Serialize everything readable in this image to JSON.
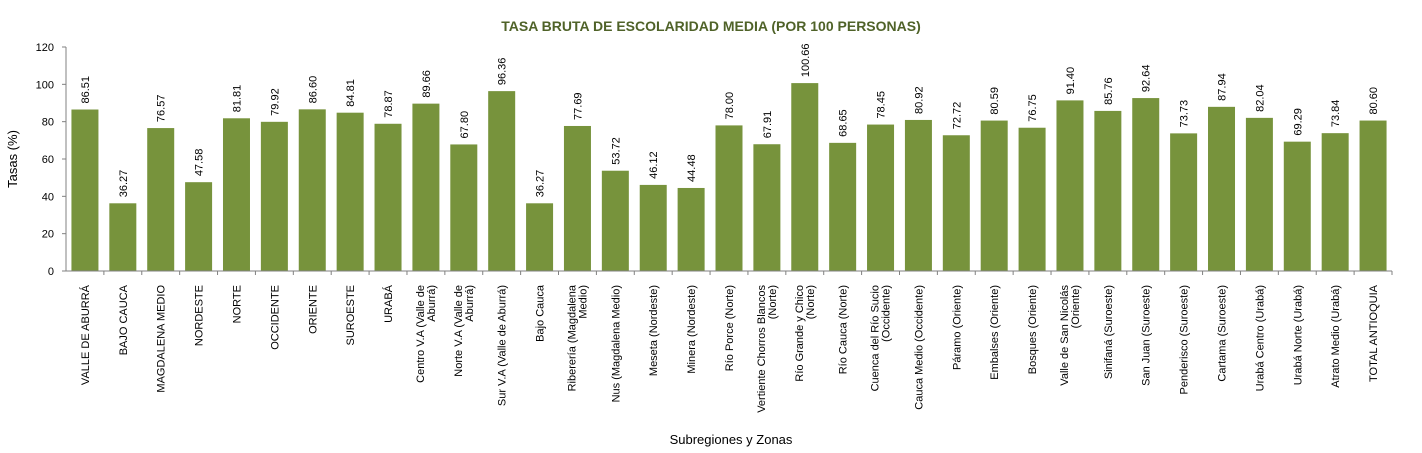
{
  "chart_data": {
    "type": "bar",
    "title": "TASA BRUTA DE ESCOLARIDAD MEDIA (POR 100 PERSONAS)",
    "xlabel": "Subregiones y Zonas",
    "ylabel": "Tasas (%)",
    "ylim": [
      0,
      120
    ],
    "yticks": [
      0,
      20,
      40,
      60,
      80,
      100,
      120
    ],
    "grid": false,
    "colors": {
      "bar": "#77933C",
      "title": "#4F6228",
      "axis": "#808080"
    },
    "categories": [
      [
        "VALLE DE ABURRÁ"
      ],
      [
        "BAJO CAUCA"
      ],
      [
        "MAGDALENA MEDIO"
      ],
      [
        "NORDESTE"
      ],
      [
        "NORTE"
      ],
      [
        "OCCIDENTE"
      ],
      [
        "ORIENTE"
      ],
      [
        "SUROESTE"
      ],
      [
        "URABÁ"
      ],
      [
        "Centro V.A (Valle de",
        "Aburrá)"
      ],
      [
        "Norte V.A (Valle de",
        "Aburrá)"
      ],
      [
        "Sur  V.A (Valle de Aburrá)"
      ],
      [
        "Bajo Cauca"
      ],
      [
        "Riberería  (Magdalena",
        "Medio)"
      ],
      [
        "Nus  (Magdalena Medio)"
      ],
      [
        "Meseta  (Nordeste)"
      ],
      [
        "Minera  (Nordeste)"
      ],
      [
        "Río Porce   (Norte)"
      ],
      [
        "Vertiente Chorros Blancos",
        "(Norte)"
      ],
      [
        "Río Grande y Chico",
        "(Norte)"
      ],
      [
        "Río Cauca  (Norte)"
      ],
      [
        "Cuenca del Río Sucio",
        "(Occidente)"
      ],
      [
        "Cauca Medio  (Occidente)"
      ],
      [
        "Páramo  (Oriente)"
      ],
      [
        "Embalses  (Oriente)"
      ],
      [
        "Bosques  (Oriente)"
      ],
      [
        "Valle de San Nicolás",
        "(Oriente)"
      ],
      [
        "Sinifaná  (Suroeste)"
      ],
      [
        "San Juan  (Suroeste)"
      ],
      [
        "Penderisco  (Suroeste)"
      ],
      [
        "Cartama  (Suroeste)"
      ],
      [
        "Urabá Centro  (Urabá)"
      ],
      [
        "Urabá Norte  (Urabá)"
      ],
      [
        "Atrato Medio  (Urabá)"
      ],
      [
        "TOTAL ANTIOQUIA"
      ]
    ],
    "values": [
      86.51,
      36.27,
      76.57,
      47.58,
      81.81,
      79.92,
      86.6,
      84.81,
      78.87,
      89.66,
      67.8,
      96.36,
      36.27,
      77.69,
      53.72,
      46.12,
      44.48,
      78.0,
      67.91,
      100.66,
      68.65,
      78.45,
      80.92,
      72.72,
      80.59,
      76.75,
      91.4,
      85.76,
      92.64,
      73.73,
      87.94,
      82.04,
      69.29,
      73.84,
      80.6
    ],
    "value_labels": [
      "86.51",
      "36.27",
      "76.57",
      "47.58",
      "81.81",
      "79.92",
      "86.60",
      "84.81",
      "78.87",
      "89.66",
      "67.80",
      "96.36",
      "36.27",
      "77.69",
      "53.72",
      "46.12",
      "44.48",
      "78.00",
      "67.91",
      "100.66",
      "68.65",
      "78.45",
      "80.92",
      "72.72",
      "80.59",
      "76.75",
      "91.40",
      "85.76",
      "92.64",
      "73.73",
      "87.94",
      "82.04",
      "69.29",
      "73.84",
      "80.60"
    ]
  }
}
